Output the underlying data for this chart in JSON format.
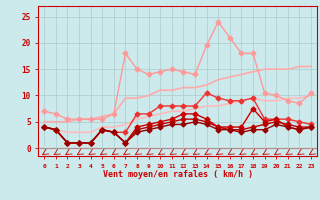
{
  "title": "",
  "xlabel": "Vent moyen/en rafales ( km/h )",
  "ylabel": "",
  "bg_color": "#cce9ec",
  "grid_color": "#aacccc",
  "axis_color": "#cc0000",
  "x_ticks": [
    0,
    1,
    2,
    3,
    4,
    5,
    6,
    7,
    8,
    9,
    10,
    11,
    12,
    13,
    14,
    15,
    16,
    17,
    18,
    19,
    20,
    21,
    22,
    23
  ],
  "ylim": [
    -1.5,
    27
  ],
  "xlim": [
    -0.5,
    23.5
  ],
  "lines": [
    {
      "x": [
        0,
        1,
        2,
        3,
        4,
        5,
        6,
        7,
        8,
        9,
        10,
        11,
        12,
        13,
        14,
        15,
        16,
        17,
        18,
        19,
        20,
        21,
        22,
        23
      ],
      "y": [
        7,
        6.5,
        5.5,
        5.5,
        5.5,
        5.5,
        6.5,
        18,
        15,
        14,
        14.5,
        15,
        14.5,
        14,
        19.5,
        24,
        21,
        18,
        18,
        10.5,
        10,
        9,
        8.5,
        10.5
      ],
      "color": "#ff9999",
      "lw": 1.0,
      "marker": "D",
      "ms": 2.5
    },
    {
      "x": [
        0,
        1,
        2,
        3,
        4,
        5,
        6,
        7,
        8,
        9,
        10,
        11,
        12,
        13,
        14,
        15,
        16,
        17,
        18,
        19,
        20,
        21,
        22,
        23
      ],
      "y": [
        5,
        5,
        5,
        5.5,
        5.5,
        6,
        6.5,
        9.5,
        9.5,
        10,
        11,
        11,
        11.5,
        11.5,
        12,
        13,
        13.5,
        14,
        14.5,
        15,
        15,
        15,
        15.5,
        15.5
      ],
      "color": "#ffaaaa",
      "lw": 1.2,
      "marker": null,
      "ms": 0
    },
    {
      "x": [
        0,
        1,
        2,
        3,
        4,
        5,
        6,
        7,
        8,
        9,
        10,
        11,
        12,
        13,
        14,
        15,
        16,
        17,
        18,
        19,
        20,
        21,
        22,
        23
      ],
      "y": [
        4,
        3.5,
        3,
        3,
        3,
        4,
        4,
        4.5,
        5.5,
        6,
        6.5,
        7,
        7,
        7.5,
        8,
        8,
        8.5,
        9,
        9.5,
        9,
        9,
        9.5,
        9.5,
        10
      ],
      "color": "#ffbbbb",
      "lw": 1.2,
      "marker": null,
      "ms": 0
    },
    {
      "x": [
        0,
        1,
        2,
        3,
        4,
        5,
        6,
        7,
        8,
        9,
        10,
        11,
        12,
        13,
        14,
        15,
        16,
        17,
        18,
        19,
        20,
        21,
        22,
        23
      ],
      "y": [
        4,
        3.5,
        1,
        1,
        1,
        3.5,
        3,
        3,
        6.5,
        6.5,
        8,
        8,
        8,
        8,
        10.5,
        9.5,
        9,
        9,
        9.5,
        5.5,
        5.5,
        5.5,
        5,
        4.5
      ],
      "color": "#ee3333",
      "lw": 1.0,
      "marker": "D",
      "ms": 2.5
    },
    {
      "x": [
        0,
        1,
        2,
        3,
        4,
        5,
        6,
        7,
        8,
        9,
        10,
        11,
        12,
        13,
        14,
        15,
        16,
        17,
        18,
        19,
        20,
        21,
        22,
        23
      ],
      "y": [
        4,
        3.5,
        1,
        1,
        1,
        3.5,
        3,
        1,
        4,
        4.5,
        5,
        5.5,
        6.5,
        6.5,
        5.5,
        4,
        4,
        4,
        7.5,
        5,
        5.5,
        4,
        3.5,
        4
      ],
      "color": "#cc0000",
      "lw": 1.0,
      "marker": "D",
      "ms": 2.5
    },
    {
      "x": [
        0,
        1,
        2,
        3,
        4,
        5,
        6,
        7,
        8,
        9,
        10,
        11,
        12,
        13,
        14,
        15,
        16,
        17,
        18,
        19,
        20,
        21,
        22,
        23
      ],
      "y": [
        4,
        3.5,
        1,
        1,
        1,
        3.5,
        3,
        1,
        3.5,
        4,
        4.5,
        5,
        5.5,
        5.5,
        5,
        4,
        3.5,
        3.5,
        4,
        4.5,
        5,
        4.5,
        4,
        4
      ],
      "color": "#bb0000",
      "lw": 1.0,
      "marker": "D",
      "ms": 2.5
    },
    {
      "x": [
        0,
        1,
        2,
        3,
        4,
        5,
        6,
        7,
        8,
        9,
        10,
        11,
        12,
        13,
        14,
        15,
        16,
        17,
        18,
        19,
        20,
        21,
        22,
        23
      ],
      "y": [
        4,
        3.5,
        1,
        1,
        1,
        3.5,
        3,
        1,
        3,
        3.5,
        4,
        4.5,
        4.5,
        5,
        4.5,
        3.5,
        3.5,
        3,
        3.5,
        3.5,
        4.5,
        4,
        3.5,
        4
      ],
      "color": "#990000",
      "lw": 1.0,
      "marker": "D",
      "ms": 2.5
    }
  ],
  "yticks": [
    0,
    5,
    10,
    15,
    20,
    25
  ]
}
